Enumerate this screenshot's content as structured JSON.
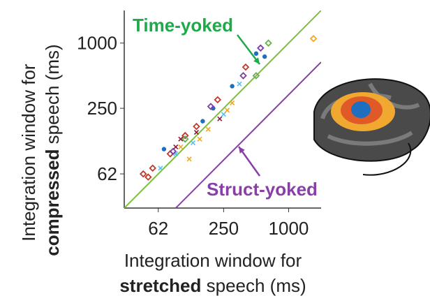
{
  "chart_data": {
    "type": "scatter",
    "y_label": [
      "Integration window for",
      "compressed",
      " speech (ms)"
    ],
    "x_label": [
      "Integration window for",
      "stretched",
      " speech (ms)"
    ],
    "xscale": "log",
    "yscale": "log",
    "xlim": [
      30,
      2000
    ],
    "ylim": [
      30,
      2000
    ],
    "xticks": [
      62,
      250,
      1000
    ],
    "yticks": [
      62,
      250,
      1000
    ],
    "lines": [
      {
        "name": "Time-yoked",
        "color": "#7cbf3f",
        "x": [
          30,
          2000
        ],
        "y": [
          30,
          2000
        ]
      },
      {
        "name": "Struct-yoked",
        "color": "#8a3fa8",
        "x": [
          90,
          2000
        ],
        "y": [
          30,
          667
        ]
      }
    ],
    "annotation_colors": [
      "#1faa4a",
      "#8a3fa8"
    ],
    "series": [
      {
        "color": "#c0392b",
        "marker": "diamond",
        "x": [
          45,
          50,
          80,
          110,
          140,
          220,
          400,
          55
        ],
        "y": [
          62,
          58,
          95,
          140,
          170,
          300,
          600,
          70
        ]
      },
      {
        "color": "#1f6fc0",
        "marker": "circle",
        "x": [
          70,
          160,
          500,
          600,
          300,
          200
        ],
        "y": [
          105,
          190,
          800,
          750,
          400,
          250
        ]
      },
      {
        "color": "#4fc3f7",
        "marker": "x",
        "x": [
          90,
          130,
          250,
          350,
          65
        ],
        "y": [
          95,
          120,
          220,
          420,
          70
        ]
      },
      {
        "color": "#f5a623",
        "marker": "x",
        "x": [
          100,
          180,
          270,
          120,
          150,
          300
        ],
        "y": [
          110,
          160,
          240,
          85,
          130,
          280
        ]
      },
      {
        "color": "#f5a623",
        "marker": "diamond",
        "x": [
          1700
        ],
        "y": [
          1100
        ]
      },
      {
        "color": "#7b3fa0",
        "marker": "diamond",
        "x": [
          550,
          380,
          190,
          85
        ],
        "y": [
          900,
          500,
          260,
          100
        ]
      },
      {
        "color": "#6ab04c",
        "marker": "diamond",
        "x": [
          650,
          500,
          110
        ],
        "y": [
          1000,
          500,
          130
        ]
      },
      {
        "color": "#8b1a3a",
        "marker": "x",
        "x": [
          100,
          140,
          90,
          230
        ],
        "y": [
          130,
          150,
          110,
          200
        ]
      }
    ]
  }
}
